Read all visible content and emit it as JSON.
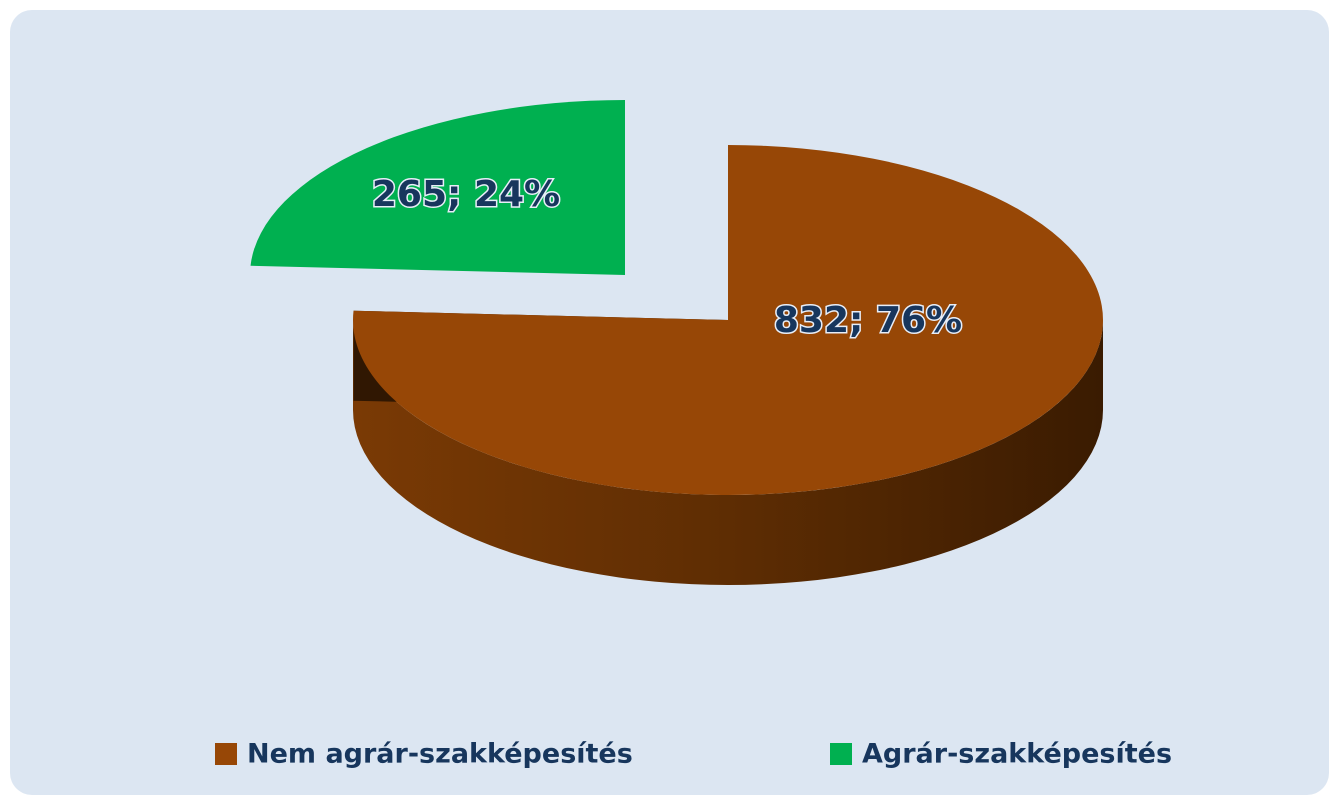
{
  "chart_data": {
    "type": "pie",
    "categories": [
      "Nem agrár-szakképesítés",
      "Agrár-szakképesítés"
    ],
    "values": [
      832,
      265
    ],
    "value_labels": [
      "832; 76%",
      "265; 24%"
    ],
    "colors": [
      "#974706",
      "#00b050"
    ],
    "legend": "bottom"
  }
}
